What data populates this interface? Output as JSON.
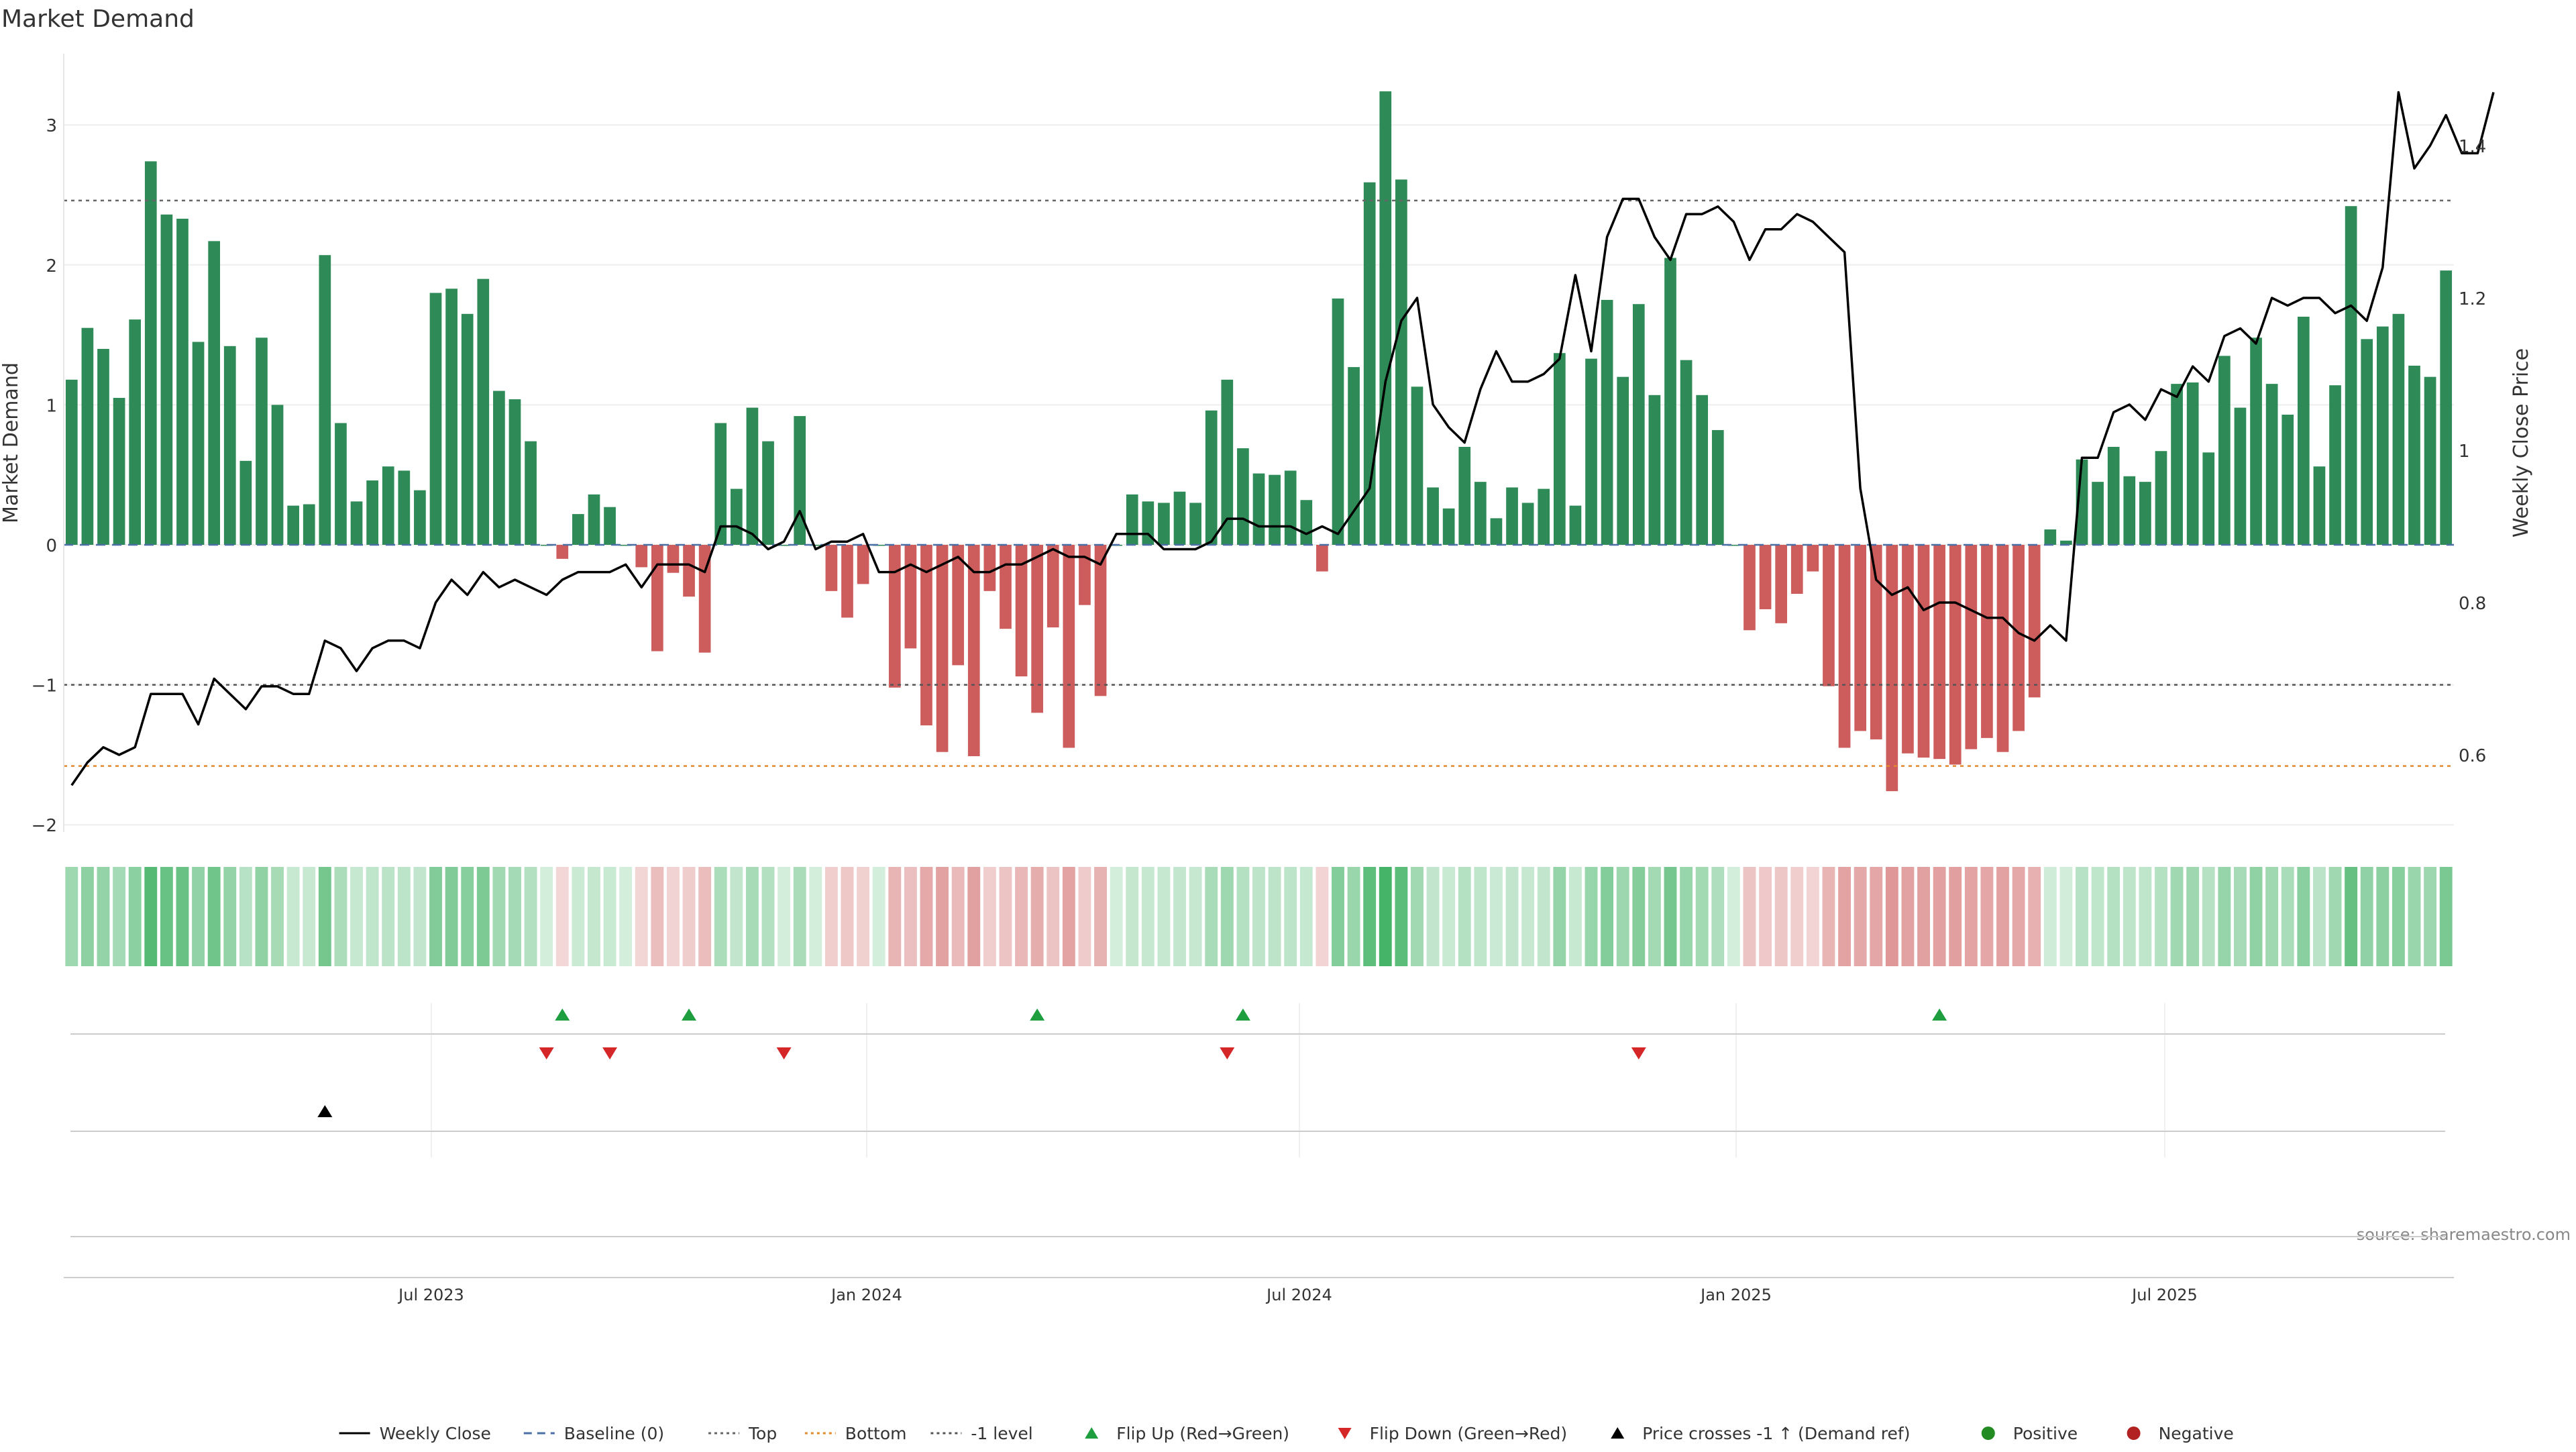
{
  "title": "Market Demand",
  "source": "source: sharemaestro.com",
  "chart_data": {
    "type": "bar",
    "title": "Market Demand",
    "ylabel": "Market Demand",
    "y2label": "Weekly Close Price",
    "ylim": [
      -2.0,
      3.3
    ],
    "y_ticks": [
      -2,
      -1,
      0,
      1,
      2,
      3
    ],
    "y2lim": [
      0.5,
      1.5
    ],
    "y2_ticks": [
      0.6,
      0.8,
      1,
      1.2,
      1.4
    ],
    "x_ticks": [
      "Jul 2023",
      "Jan 2024",
      "Jul 2024",
      "Jan 2025",
      "Jul 2025"
    ],
    "levels": {
      "top": 2.46,
      "bottom": -1.58,
      "minus_one": -1.0,
      "baseline": 0
    },
    "demand": [
      1.18,
      1.55,
      1.4,
      1.05,
      1.61,
      2.74,
      2.36,
      2.33,
      1.45,
      2.17,
      1.42,
      0.6,
      1.48,
      1.0,
      0.28,
      0.29,
      2.07,
      0.87,
      0.31,
      0.46,
      0.56,
      0.53,
      0.39,
      1.8,
      1.83,
      1.65,
      1.9,
      1.1,
      1.04,
      0.74,
      0.0,
      -0.1,
      0.22,
      0.36,
      0.27,
      0.0,
      -0.16,
      -0.76,
      -0.2,
      -0.37,
      -0.77,
      0.87,
      0.4,
      0.98,
      0.74,
      0.0,
      0.92,
      0.0,
      -0.33,
      -0.52,
      -0.28,
      0.0,
      -1.02,
      -0.74,
      -1.29,
      -1.48,
      -0.86,
      -1.51,
      -0.33,
      -0.6,
      -0.94,
      -1.2,
      -0.59,
      -1.45,
      -0.43,
      -1.08,
      0.0,
      0.36,
      0.31,
      0.3,
      0.38,
      0.3,
      0.96,
      1.18,
      0.69,
      0.51,
      0.5,
      0.53,
      0.32,
      -0.19,
      1.76,
      1.27,
      2.59,
      3.24,
      2.61,
      1.13,
      0.41,
      0.26,
      0.7,
      0.45,
      0.19,
      0.41,
      0.3,
      0.4,
      1.37,
      0.28,
      1.33,
      1.75,
      1.2,
      1.72,
      1.07,
      2.05,
      1.32,
      1.07,
      0.82,
      0.0,
      -0.61,
      -0.46,
      -0.56,
      -0.35,
      -0.19,
      -1.01,
      -1.45,
      -1.33,
      -1.39,
      -1.76,
      -1.49,
      -1.52,
      -1.53,
      -1.57,
      -1.46,
      -1.38,
      -1.48,
      -1.33,
      -1.09,
      0.11,
      0.03,
      0.61,
      0.45,
      0.7,
      0.49,
      0.45,
      0.67,
      1.15,
      1.16,
      0.66,
      1.35,
      0.98,
      1.48,
      1.15,
      0.93,
      1.63,
      0.56,
      1.14,
      2.42,
      1.47,
      1.56,
      1.65,
      1.28,
      1.2,
      1.96
    ],
    "weekly_close": [
      0.56,
      0.59,
      0.61,
      0.6,
      0.61,
      0.68,
      0.68,
      0.68,
      0.64,
      0.7,
      0.68,
      0.66,
      0.69,
      0.69,
      0.68,
      0.68,
      0.75,
      0.74,
      0.71,
      0.74,
      0.75,
      0.75,
      0.74,
      0.8,
      0.83,
      0.81,
      0.84,
      0.82,
      0.83,
      0.82,
      0.81,
      0.83,
      0.84,
      0.84,
      0.84,
      0.85,
      0.82,
      0.85,
      0.85,
      0.85,
      0.84,
      0.9,
      0.9,
      0.89,
      0.87,
      0.88,
      0.92,
      0.87,
      0.88,
      0.88,
      0.89,
      0.84,
      0.84,
      0.85,
      0.84,
      0.85,
      0.86,
      0.84,
      0.84,
      0.85,
      0.85,
      0.86,
      0.87,
      0.86,
      0.86,
      0.85,
      0.89,
      0.89,
      0.89,
      0.87,
      0.87,
      0.87,
      0.88,
      0.91,
      0.91,
      0.9,
      0.9,
      0.9,
      0.89,
      0.9,
      0.89,
      0.92,
      0.95,
      1.09,
      1.17,
      1.2,
      1.06,
      1.03,
      1.01,
      1.08,
      1.13,
      1.09,
      1.09,
      1.1,
      1.12,
      1.23,
      1.13,
      1.28,
      1.33,
      1.33,
      1.28,
      1.25,
      1.31,
      1.31,
      1.32,
      1.3,
      1.25,
      1.29,
      1.29,
      1.31,
      1.3,
      1.28,
      1.26,
      0.95,
      0.83,
      0.81,
      0.82,
      0.79,
      0.8,
      0.8,
      0.79,
      0.78,
      0.78,
      0.76,
      0.75,
      0.77,
      0.75,
      0.99,
      0.99,
      1.05,
      1.06,
      1.04,
      1.08,
      1.07,
      1.11,
      1.09,
      1.15,
      1.16,
      1.14,
      1.2,
      1.19,
      1.2,
      1.2,
      1.18,
      1.19,
      1.17,
      1.24,
      1.47,
      1.37,
      1.4,
      1.44,
      1.39,
      1.39,
      1.47
    ],
    "flip_up_weeks": [
      31,
      39,
      61,
      74,
      118
    ],
    "flip_down_weeks": [
      30,
      34,
      45,
      73,
      99
    ],
    "price_cross_weeks": [
      16
    ],
    "source": "source: sharemaestro.com"
  },
  "colors": {
    "pos_bar": "#2e8b57",
    "neg_bar": "#cd5c5c",
    "close_line": "#000000",
    "baseline": "#4a6fa5",
    "top": "#666666",
    "bottom": "#e08a2e",
    "minus_one": "#555555",
    "flip_up": "#1f9e3f",
    "flip_down": "#d62728",
    "price_cross": "#000000",
    "positive": "#228b22",
    "negative": "#b22222"
  },
  "legend": [
    {
      "key": "line",
      "label": "Weekly Close",
      "color": "#000000"
    },
    {
      "key": "dash",
      "label": "Baseline (0)",
      "color": "#4a6fa5"
    },
    {
      "key": "dot",
      "label": "Top",
      "color": "#666666"
    },
    {
      "key": "dot",
      "label": "Bottom",
      "color": "#e08a2e"
    },
    {
      "key": "dot",
      "label": "-1 level",
      "color": "#555555"
    },
    {
      "key": "tri-up",
      "label": "Flip Up (Red→Green)",
      "color": "#1f9e3f"
    },
    {
      "key": "tri-down",
      "label": "Flip Down (Green→Red)",
      "color": "#d62728"
    },
    {
      "key": "tri-up",
      "label": "Price crosses -1 ↑ (Demand ref)",
      "color": "#000000"
    },
    {
      "key": "circle",
      "label": "Positive",
      "color": "#228b22"
    },
    {
      "key": "circle",
      "label": "Negative",
      "color": "#b22222"
    }
  ]
}
